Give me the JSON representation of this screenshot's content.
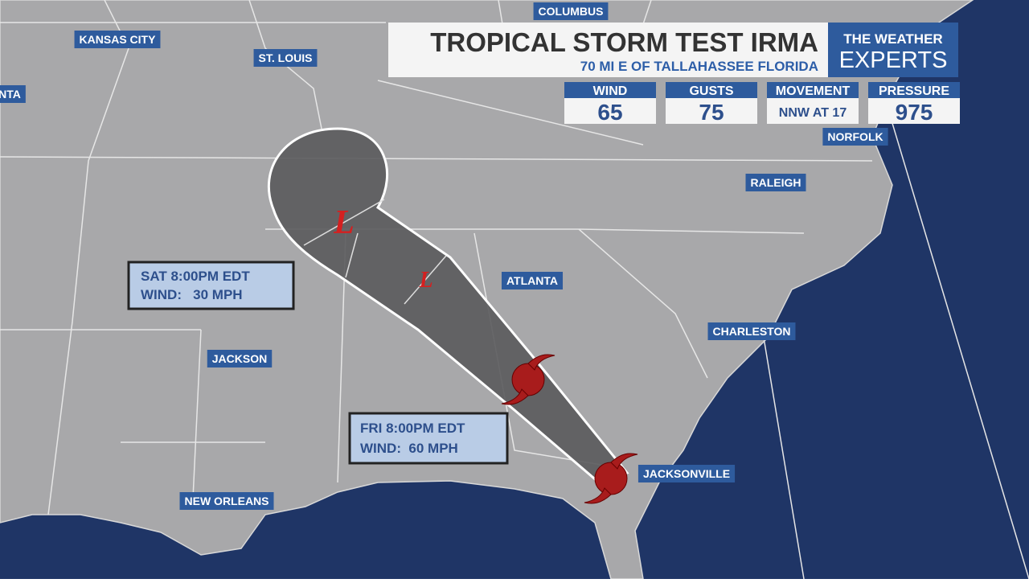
{
  "header": {
    "title": "TROPICAL STORM TEST IRMA",
    "subtitle": "70 MI E OF TALLAHASSEE FLORIDA",
    "brand_top": "THE WEATHER",
    "brand_bottom": "EXPERTS"
  },
  "stats": [
    {
      "label": "WIND",
      "value": "65"
    },
    {
      "label": "GUSTS",
      "value": "75"
    },
    {
      "label": "MOVEMENT",
      "value": "NNW AT 17"
    },
    {
      "label": "PRESSURE",
      "value": "975"
    }
  ],
  "cities": [
    "COLUMBUS",
    "KANSAS CITY",
    "ST. LOUIS",
    "NTA",
    "NORFOLK",
    "RALEIGH",
    "ATLANTA",
    "CHARLESTON",
    "JACKSON",
    "JACKSONVILLE",
    "NEW ORLEANS"
  ],
  "forecasts": [
    {
      "time": "SAT 8:00PM EDT",
      "wind": "WIND:   30 MPH"
    },
    {
      "time": "FRI 8:00PM EDT",
      "wind": "WIND:  60 MPH"
    }
  ],
  "markers": [
    "L",
    "L"
  ]
}
